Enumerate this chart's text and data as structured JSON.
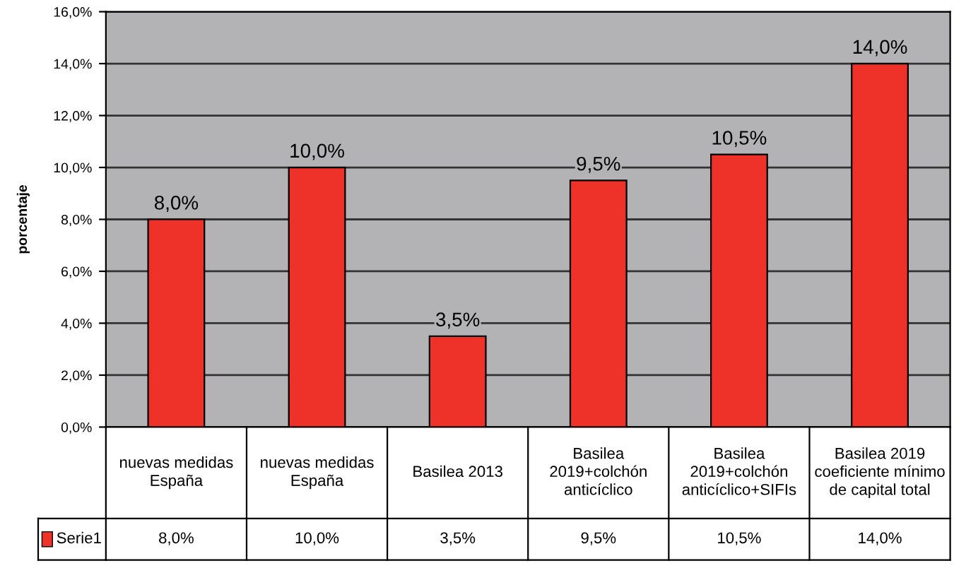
{
  "chart_data": {
    "type": "bar",
    "ylabel": "porcentaje",
    "categories": [
      "nuevas medidas\nEspaña",
      "nuevas medidas\nEspaña",
      "Basilea 2013",
      "Basilea\n2019+colchón\nanticíclico",
      "Basilea\n2019+colchón\nanticíclico+SIFIs",
      "Basilea 2019\ncoeficiente mínimo\nde capital total"
    ],
    "series": [
      {
        "name": "Serie1",
        "color": "#ee3129",
        "values": [
          8.0,
          10.0,
          3.5,
          9.5,
          10.5,
          14.0
        ],
        "value_labels": [
          "8,0%",
          "10,0%",
          "3,5%",
          "9,5%",
          "10,5%",
          "14,0%"
        ]
      }
    ],
    "ylim": [
      0,
      16
    ],
    "yticks": [
      {
        "value": 0,
        "label": "0,0%"
      },
      {
        "value": 2,
        "label": "2,0%"
      },
      {
        "value": 4,
        "label": "4,0%"
      },
      {
        "value": 6,
        "label": "6,0%"
      },
      {
        "value": 8,
        "label": "8,0%"
      },
      {
        "value": 10,
        "label": "10,0%"
      },
      {
        "value": 12,
        "label": "12,0%"
      },
      {
        "value": 14,
        "label": "14,0%"
      },
      {
        "value": 16,
        "label": "16,0%"
      }
    ],
    "grid": "y",
    "legend": "bottom"
  }
}
